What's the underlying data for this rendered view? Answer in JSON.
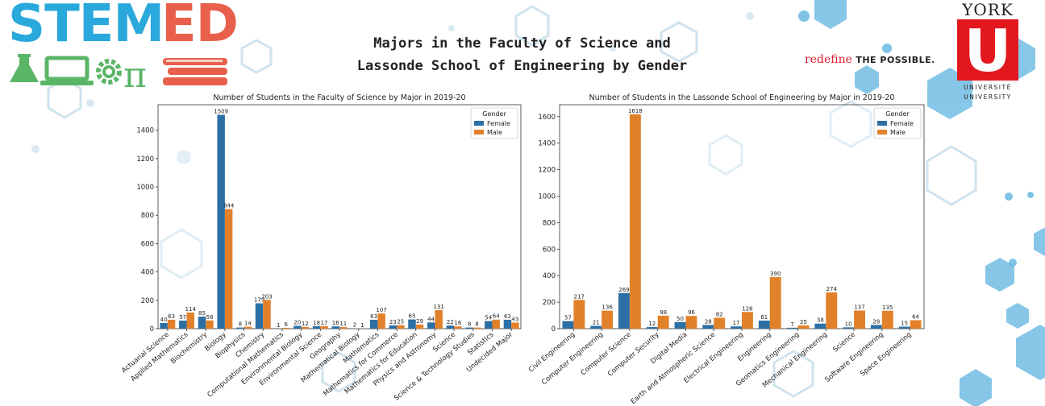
{
  "header": {
    "logo_stem": "STEM",
    "logo_ed": "ED",
    "title_line1": "Majors in the Faculty of Science and",
    "title_line2": "Lassonde School of Engineering by Gender",
    "tagline_redefine": "redefine",
    "tagline_possible": "THE POSSIBLE.",
    "york_word": "YORK",
    "york_letter": "U",
    "york_sub1": "UNIVERSITÉ",
    "york_sub2": "UNIVERSITY"
  },
  "colors": {
    "female": "#2c6fa5",
    "male": "#e2812a",
    "stem_blue": "#29a8dc",
    "stem_green": "#5bb567",
    "ed_red": "#e8604c",
    "york_red": "#e3181f"
  },
  "chart_data": [
    {
      "type": "bar",
      "title": "Number of Students in the Faculty of Science by Major in 2019-20",
      "xlabel": "",
      "ylabel": "",
      "ylim": [
        0,
        1580
      ],
      "yticks": [
        0,
        200,
        400,
        600,
        800,
        1000,
        1200,
        1400
      ],
      "legend": {
        "title": "Gender",
        "position": "top-right"
      },
      "categories": [
        "Actuarial Science",
        "Applied Mathematics",
        "Biochemistry",
        "Biology",
        "Biophysics",
        "Chemistry",
        "Computational Mathematics",
        "Environmental Biology",
        "Environmental Science",
        "Geography",
        "Mathematical Biology",
        "Mathematics",
        "Mathematics for Commerce",
        "Mathematics for Education",
        "Physics and Astronomy",
        "Science",
        "Science & Technology Studies",
        "Statistics",
        "Undecided Major"
      ],
      "series": [
        {
          "name": "Female",
          "values": [
            40,
            57,
            85,
            1509,
            8,
            179,
            1,
            20,
            18,
            16,
            2,
            63,
            23,
            65,
            44,
            22,
            8,
            54,
            63
          ]
        },
        {
          "name": "Male",
          "values": [
            63,
            114,
            58,
            844,
            14,
            203,
            6,
            12,
            17,
            11,
            1,
            107,
            25,
            29,
            131,
            16,
            8,
            64,
            43
          ]
        }
      ]
    },
    {
      "type": "bar",
      "title": "Number of Students in the Lassonde School of Engineering by Major in 2019-20",
      "xlabel": "",
      "ylabel": "",
      "ylim": [
        0,
        1690
      ],
      "yticks": [
        0,
        200,
        400,
        600,
        800,
        1000,
        1200,
        1400,
        1600
      ],
      "legend": {
        "title": "Gender",
        "position": "top-right"
      },
      "categories": [
        "Civil Engineering",
        "Computer Engineering",
        "Computer Science",
        "Computer Security",
        "Digital Media",
        "Earth and Atmospheric Science",
        "Electrical Engineering",
        "Engineering",
        "Geomatics Engineering",
        "Mechanical Engineering",
        "Science",
        "Software Engineering",
        "Space Engineering"
      ],
      "series": [
        {
          "name": "Female",
          "values": [
            57,
            21,
            269,
            12,
            50,
            28,
            17,
            61,
            7,
            38,
            10,
            28,
            15
          ]
        },
        {
          "name": "Male",
          "values": [
            217,
            136,
            1618,
            98,
            96,
            82,
            126,
            390,
            25,
            274,
            137,
            135,
            64
          ]
        }
      ]
    }
  ]
}
